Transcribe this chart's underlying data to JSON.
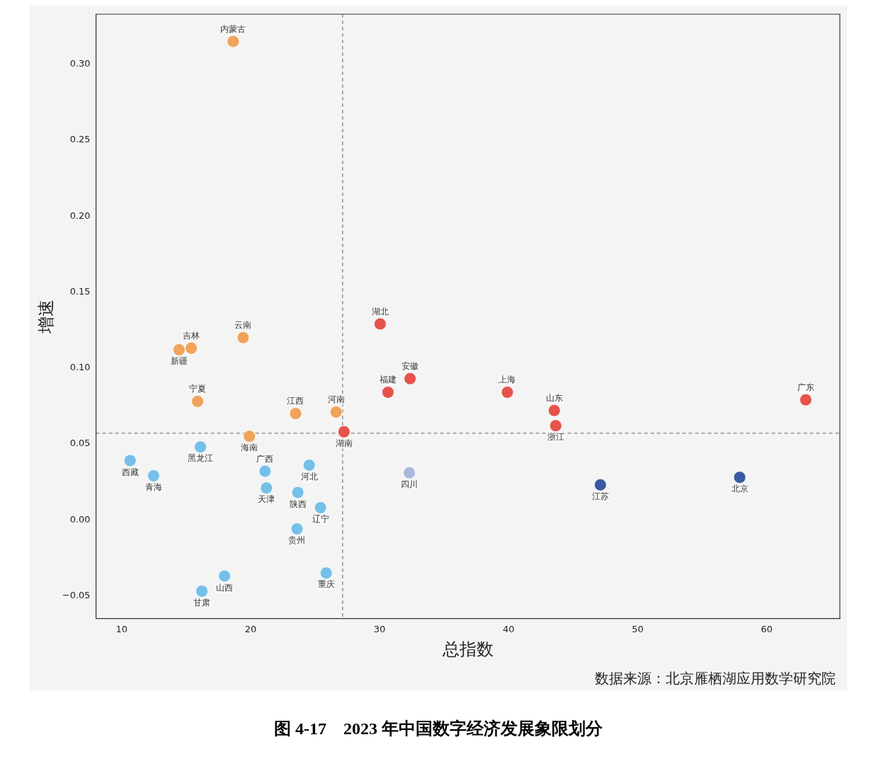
{
  "chart_data": {
    "type": "scatter",
    "title": "图 4-17　2023 年中国数字经济发展象限划分",
    "xlabel": "总指数",
    "ylabel": "增速",
    "x": [
      18.65,
      19.42,
      15.4,
      14.46,
      15.89,
      23.49,
      26.63,
      19.91,
      27.24,
      16.11,
      10.66,
      12.48,
      21.12,
      24.54,
      21.23,
      23.66,
      25.42,
      23.6,
      25.86,
      17.98,
      16.22,
      30.04,
      32.36,
      30.65,
      39.9,
      43.54,
      43.65,
      63.03,
      32.3,
      47.11,
      57.91
    ],
    "values": [
      0.315,
      0.12,
      0.113,
      0.112,
      0.078,
      0.07,
      0.071,
      0.055,
      0.058,
      0.048,
      0.039,
      0.029,
      0.032,
      0.036,
      0.021,
      0.018,
      0.008,
      -0.006,
      -0.035,
      -0.037,
      -0.047,
      0.129,
      0.093,
      0.084,
      0.084,
      0.072,
      0.062,
      0.079,
      0.031,
      0.023,
      0.028
    ],
    "colors": [
      "#f0a35a",
      "#f0a35a",
      "#f0a35a",
      "#f0a35a",
      "#f0a35a",
      "#f0a35a",
      "#f0a35a",
      "#f0a35a",
      "#e5534b",
      "#74c0e8",
      "#74c0e8",
      "#74c0e8",
      "#74c0e8",
      "#74c0e8",
      "#74c0e8",
      "#74c0e8",
      "#74c0e8",
      "#74c0e8",
      "#74c0e8",
      "#74c0e8",
      "#74c0e8",
      "#e5534b",
      "#e5534b",
      "#e5534b",
      "#e5534b",
      "#e5534b",
      "#e5534b",
      "#e5534b",
      "#aab8dd",
      "#3a5aa0",
      "#3a5aa0"
    ],
    "marker": "circle",
    "xlim": [
      8.02,
      65.67
    ],
    "xticks": [
      10,
      20,
      30,
      40,
      50,
      60
    ],
    "ylim": [
      -0.065,
      0.333
    ],
    "yticks": [
      {
        "value": -0.05,
        "label": "−0.05"
      },
      {
        "value": 0,
        "label": "0.00"
      },
      {
        "value": 0.05,
        "label": "0.05"
      },
      {
        "value": 0.1,
        "label": "0.10"
      },
      {
        "value": 0.15,
        "label": "0.15"
      },
      {
        "value": 0.2,
        "label": "0.20"
      },
      {
        "value": 0.25,
        "label": "0.25"
      },
      {
        "value": 0.3,
        "label": "0.30"
      }
    ],
    "grid": false,
    "legend": false,
    "ref_lines": [
      {
        "axis": "x",
        "value": 27.13,
        "color": "#808080",
        "line_style": "dashed"
      },
      {
        "axis": "y",
        "value": 0.057,
        "color": "#808080",
        "line_style": "dashed"
      }
    ],
    "annotations": [
      {
        "text": "内蒙古",
        "x": 18.65,
        "y": 0.315
      },
      {
        "text": "云南",
        "x": 19.42,
        "y": 0.12
      },
      {
        "text": "吉林",
        "x": 15.4,
        "y": 0.113
      },
      {
        "text": "新疆",
        "x": 14.46,
        "y": 0.112
      },
      {
        "text": "宁夏",
        "x": 15.89,
        "y": 0.078
      },
      {
        "text": "江西",
        "x": 23.49,
        "y": 0.07
      },
      {
        "text": "河南",
        "x": 26.63,
        "y": 0.071
      },
      {
        "text": "海南",
        "x": 19.91,
        "y": 0.055
      },
      {
        "text": "湖南",
        "x": 27.24,
        "y": 0.058
      },
      {
        "text": "黑龙江",
        "x": 16.11,
        "y": 0.048
      },
      {
        "text": "西藏",
        "x": 10.66,
        "y": 0.039
      },
      {
        "text": "青海",
        "x": 12.48,
        "y": 0.029
      },
      {
        "text": "广西",
        "x": 21.12,
        "y": 0.032
      },
      {
        "text": "河北",
        "x": 24.54,
        "y": 0.036
      },
      {
        "text": "天津",
        "x": 21.23,
        "y": 0.021
      },
      {
        "text": "陕西",
        "x": 23.66,
        "y": 0.018
      },
      {
        "text": "辽宁",
        "x": 25.42,
        "y": 0.008
      },
      {
        "text": "贵州",
        "x": 23.6,
        "y": -0.006
      },
      {
        "text": "重庆",
        "x": 25.86,
        "y": -0.035
      },
      {
        "text": "山西",
        "x": 17.98,
        "y": -0.037
      },
      {
        "text": "甘肃",
        "x": 16.22,
        "y": -0.047
      },
      {
        "text": "湖北",
        "x": 30.04,
        "y": 0.129
      },
      {
        "text": "安徽",
        "x": 32.36,
        "y": 0.093
      },
      {
        "text": "福建",
        "x": 30.65,
        "y": 0.084
      },
      {
        "text": "上海",
        "x": 39.9,
        "y": 0.084
      },
      {
        "text": "山东",
        "x": 43.54,
        "y": 0.072
      },
      {
        "text": "浙江",
        "x": 43.65,
        "y": 0.062
      },
      {
        "text": "广东",
        "x": 63.03,
        "y": 0.079
      },
      {
        "text": "四川",
        "x": 32.3,
        "y": 0.031
      },
      {
        "text": "江苏",
        "x": 47.11,
        "y": 0.023
      },
      {
        "text": "北京",
        "x": 57.91,
        "y": 0.028
      },
      "数据来源：北京雁栖湖应用数学研究院"
    ]
  }
}
